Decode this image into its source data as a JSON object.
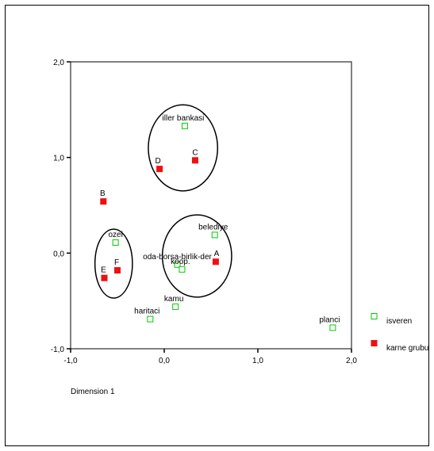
{
  "chart_data": {
    "type": "scatter",
    "xlabel": "Dimension 1",
    "ylabel": "",
    "xlim": [
      -1.0,
      2.0
    ],
    "ylim": [
      -1.0,
      2.0
    ],
    "x_ticks": [
      "-1,0",
      "0,0",
      "1,0",
      "2,0"
    ],
    "y_ticks": [
      "-1,0",
      "0,0",
      "1,0",
      "2,0"
    ],
    "x_tick_values": [
      -1,
      0,
      1,
      2
    ],
    "y_tick_values": [
      -1,
      0,
      1,
      2
    ],
    "grid": false,
    "legend_position": "bottom-right",
    "series": [
      {
        "name": "isveren",
        "color": "#00cc00",
        "marker": "hollow-square",
        "points": [
          {
            "label": "iller bankasi",
            "x": 0.22,
            "y": 1.33
          },
          {
            "label": "belediye",
            "x": 0.54,
            "y": 0.19
          },
          {
            "label": "ozel",
            "x": -0.52,
            "y": 0.11
          },
          {
            "label": "oda-borsa-birlik-der",
            "x": 0.14,
            "y": -0.12
          },
          {
            "label": "koop.",
            "x": 0.19,
            "y": -0.17
          },
          {
            "label": "kamu",
            "x": 0.12,
            "y": -0.56
          },
          {
            "label": "haritaci",
            "x": -0.15,
            "y": -0.69
          },
          {
            "label": "planci",
            "x": 1.8,
            "y": -0.78
          }
        ]
      },
      {
        "name": "karne grubu",
        "color": "#ee1111",
        "marker": "filled-square",
        "points": [
          {
            "label": "D",
            "x": -0.05,
            "y": 0.88
          },
          {
            "label": "C",
            "x": 0.33,
            "y": 0.97
          },
          {
            "label": "B",
            "x": -0.65,
            "y": 0.54
          },
          {
            "label": "A",
            "x": 0.55,
            "y": -0.09
          },
          {
            "label": "F",
            "x": -0.5,
            "y": -0.18
          },
          {
            "label": "E",
            "x": -0.64,
            "y": -0.26
          }
        ]
      }
    ],
    "annotations": [
      {
        "shape": "ellipse",
        "cx": 0.2,
        "cy": 1.1,
        "rx": 0.37,
        "ry": 0.45
      },
      {
        "shape": "ellipse",
        "cx": 0.35,
        "cy": -0.03,
        "rx": 0.37,
        "ry": 0.43
      },
      {
        "shape": "ellipse",
        "cx": -0.54,
        "cy": -0.11,
        "rx": 0.2,
        "ry": 0.36
      }
    ]
  }
}
